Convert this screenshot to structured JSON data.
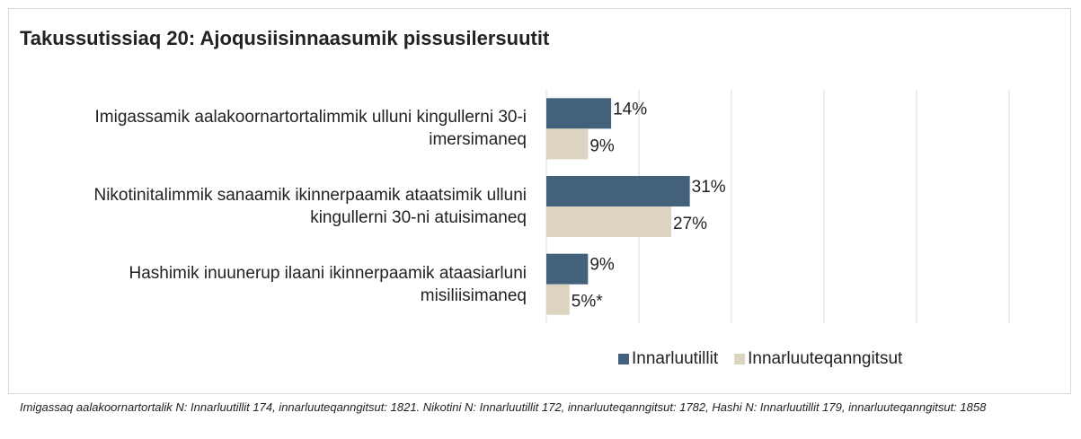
{
  "chart_data": {
    "type": "bar",
    "orientation": "horizontal",
    "title": "Takussutissiaq 20: Ajoqusiisinnaasumik pissusilersuutit",
    "categories": [
      "Imigassamik aalakoornartortalimmik ulluni kingullerni 30-i imersimaneq",
      "Nikotinitalimmik sanaamik ikinnerpaamik ataatsimik ulluni kingullerni 30-ni atuisimaneq",
      "Hashimik inuunerup ilaani ikinnerpaamik ataasiarluni misiliisimaneq"
    ],
    "series": [
      {
        "name": "Innarluutillit",
        "color": "#44617b",
        "values": [
          14,
          31,
          9
        ],
        "value_labels": [
          "14%",
          "31%",
          "9%"
        ]
      },
      {
        "name": "Innarluuteqanngitsut",
        "color": "#dcd3c0",
        "values": [
          9,
          27,
          5
        ],
        "value_labels": [
          "9%",
          "27%",
          "5%*"
        ]
      }
    ],
    "xlim": [
      0,
      100
    ],
    "xticks": [
      0,
      20,
      40,
      60,
      80,
      100
    ],
    "grid": true,
    "legend": "bottom",
    "footnote": "Imigassaq aalakoornartortalik N: Innarluutillit 174, innarluuteqanngitsut: 1821. Nikotini N: Innarluutillit 172, innarluuteqanngitsut: 1782, Hashi N: Innarluutillit 179, innarluuteqanngitsut: 1858"
  }
}
